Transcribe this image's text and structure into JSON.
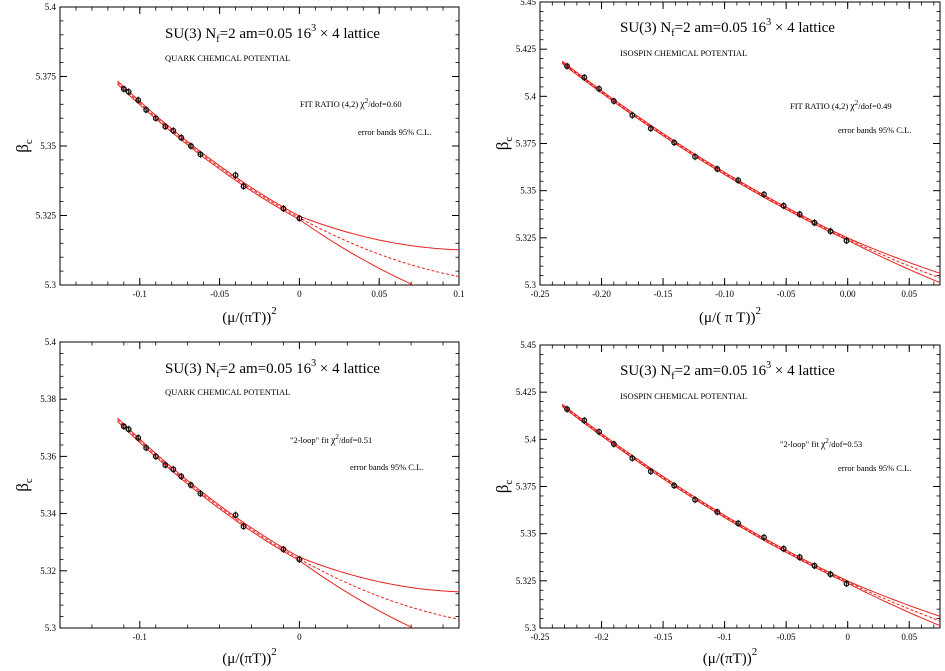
{
  "chart_data": [
    {
      "type": "line",
      "title_text": {
        "group": "SU(3)",
        "flavor": "N",
        "flavor_sub": "f",
        "flavor_eq": "=2",
        "mass": "am=0.05",
        "lattice_base": "16",
        "lattice_sup": "3",
        "lattice_rest": "× 4 lattice"
      },
      "subtitle": "QUARK CHEMICAL POTENTIAL",
      "fit_label": "FIT RATIO (4,2)",
      "chi_label": "χ",
      "chi_sup": "2",
      "chi_rest": "/dof=0.60",
      "error_label": "error bands 95% C.L.",
      "xlabel_main": "(μ/(πT))",
      "xlabel_sup": "2",
      "ylabel_main": "β",
      "ylabel_sub": "c",
      "xlim": [
        -0.15,
        0.1
      ],
      "ylim": [
        5.3,
        5.4
      ],
      "xticks": [
        -0.1,
        -0.05,
        0,
        0.05,
        0.1
      ],
      "xticklabels": [
        "-0.1",
        "-0.05",
        "0",
        "0.05",
        "0.1"
      ],
      "yticks": [
        5.3,
        5.325,
        5.35,
        5.375,
        5.4
      ],
      "yticklabels": [
        "5.3",
        "5.325",
        "5.35",
        "5.375",
        "5.4"
      ],
      "x": [
        -0.11,
        -0.107,
        -0.101,
        -0.096,
        -0.09,
        -0.084,
        -0.079,
        -0.074,
        -0.068,
        -0.062,
        -0.04,
        -0.035,
        -0.01,
        0.0
      ],
      "y": [
        5.3705,
        5.3695,
        5.3665,
        5.363,
        5.36,
        5.357,
        5.3555,
        5.353,
        5.35,
        5.347,
        5.3395,
        5.3355,
        5.3275,
        5.324
      ],
      "fit": {
        "x0": -0.112,
        "x1": 0.08,
        "center": [
          5.3712,
          5.3
        ],
        "upper": [
          5.3722,
          5.3
        ],
        "lower": [
          5.37,
          5.3
        ],
        "x_upper_end": 0.08,
        "x_lower_end": 0.063,
        "x_center_end": 0.071
      }
    },
    {
      "type": "line",
      "title_text": {
        "group": "SU(3)",
        "flavor": "N",
        "flavor_sub": "f",
        "flavor_eq": "=2",
        "mass": "am=0.05",
        "lattice_base": "16",
        "lattice_sup": "3",
        "lattice_rest": "× 4 lattice"
      },
      "subtitle": "ISOSPIN CHEMICAL POTENTIAL",
      "fit_label": "FIT  RATIO (4,2)",
      "chi_label": "χ",
      "chi_sup": "2",
      "chi_rest": "/dof=0.49",
      "error_label": "error bands 95% C.L.",
      "xlabel_main": "(μ/( π T))",
      "xlabel_sup": "2",
      "ylabel_main": "β",
      "ylabel_sub": "c",
      "xlim": [
        -0.25,
        0.075
      ],
      "ylim": [
        5.3,
        5.45
      ],
      "xticks": [
        -0.25,
        -0.2,
        -0.15,
        -0.1,
        -0.05,
        0,
        0.05
      ],
      "xticklabels": [
        "-0.25",
        "-0.20",
        "-0.15",
        "-0.10",
        "-0.05",
        "0.00",
        "0.05"
      ],
      "yticks": [
        5.3,
        5.325,
        5.35,
        5.375,
        5.4,
        5.425,
        5.45
      ],
      "yticklabels": [
        "5.3",
        "5.325",
        "5.35",
        "5.375",
        "5.4",
        "5.425",
        "5.45"
      ],
      "x": [
        -0.228,
        -0.214,
        -0.202,
        -0.19,
        -0.175,
        -0.16,
        -0.141,
        -0.124,
        -0.106,
        -0.089,
        -0.068,
        -0.052,
        -0.039,
        -0.027,
        -0.014,
        -0.001
      ],
      "y": [
        5.416,
        5.41,
        5.404,
        5.3975,
        5.39,
        5.383,
        5.3755,
        5.368,
        5.3615,
        5.3555,
        5.348,
        5.342,
        5.3375,
        5.333,
        5.3285,
        5.3235
      ]
    },
    {
      "type": "line",
      "title_text": {
        "group": "SU(3)",
        "flavor": "N",
        "flavor_sub": "f",
        "flavor_eq": "=2",
        "mass": "am=0.05",
        "lattice_base": "16",
        "lattice_sup": "3",
        "lattice_rest": "× 4 lattice"
      },
      "subtitle": "QUARK CHEMICAL POTENTIAL",
      "fit_label": "\"2-loop\" fit",
      "chi_label": "χ",
      "chi_sup": "2",
      "chi_rest": "/dof=0.51",
      "error_label": "error bands 95% C.L.",
      "xlabel_main": "(μ/(πT))",
      "xlabel_sup": "2",
      "ylabel_main": "β",
      "ylabel_sub": "c",
      "xlim": [
        -0.15,
        0.1
      ],
      "ylim": [
        5.3,
        5.4
      ],
      "xticks": [
        -0.1,
        0
      ],
      "xticklabels": [
        "-0.1",
        "0"
      ],
      "yticks": [
        5.3,
        5.32,
        5.34,
        5.36,
        5.38,
        5.4
      ],
      "yticklabels": [
        "5.3",
        "5.32",
        "5.34",
        "5.36",
        "5.38",
        "5.4"
      ],
      "x": [
        -0.11,
        -0.107,
        -0.101,
        -0.096,
        -0.09,
        -0.084,
        -0.079,
        -0.074,
        -0.068,
        -0.062,
        -0.04,
        -0.035,
        -0.01,
        0.0
      ],
      "y": [
        5.3705,
        5.3695,
        5.3665,
        5.363,
        5.36,
        5.357,
        5.3555,
        5.353,
        5.35,
        5.347,
        5.3395,
        5.3355,
        5.3275,
        5.324
      ]
    },
    {
      "type": "line",
      "title_text": {
        "group": "SU(3)",
        "flavor": "N",
        "flavor_sub": "f",
        "flavor_eq": "=2",
        "mass": "am=0.05",
        "lattice_base": "16",
        "lattice_sup": "3",
        "lattice_rest": "× 4 lattice"
      },
      "subtitle": "ISOSPIN CHEMICAL POTENTIAL",
      "fit_label": "\"2-loop\" fit",
      "chi_label": "χ",
      "chi_sup": "2",
      "chi_rest": "/dof=0.53",
      "error_label": "error bands 95% C.L.",
      "xlabel_main": "(μ/(πT))",
      "xlabel_sup": "2",
      "ylabel_main": "β",
      "ylabel_sub": "c",
      "xlim": [
        -0.25,
        0.075
      ],
      "ylim": [
        5.3,
        5.45
      ],
      "xticks": [
        -0.25,
        -0.2,
        -0.15,
        -0.1,
        -0.05,
        0,
        0.05
      ],
      "xticklabels": [
        "-0.25",
        "-0.2",
        "-0.15",
        "-0.1",
        "-0.05",
        "0",
        "0.05"
      ],
      "yticks": [
        5.3,
        5.325,
        5.35,
        5.375,
        5.4,
        5.425,
        5.45
      ],
      "yticklabels": [
        "5.3",
        "5.325",
        "5.35",
        "5.375",
        "5.4",
        "5.425",
        "5.45"
      ],
      "x": [
        -0.228,
        -0.214,
        -0.202,
        -0.19,
        -0.175,
        -0.16,
        -0.141,
        -0.124,
        -0.106,
        -0.089,
        -0.068,
        -0.052,
        -0.039,
        -0.027,
        -0.014,
        -0.001
      ],
      "y": [
        5.416,
        5.41,
        5.404,
        5.3975,
        5.39,
        5.383,
        5.3755,
        5.368,
        5.3615,
        5.3555,
        5.348,
        5.342,
        5.3375,
        5.333,
        5.3285,
        5.3235
      ]
    }
  ],
  "colors": {
    "fit": "#e8231f",
    "points": "#111111",
    "axis": "#000000"
  }
}
